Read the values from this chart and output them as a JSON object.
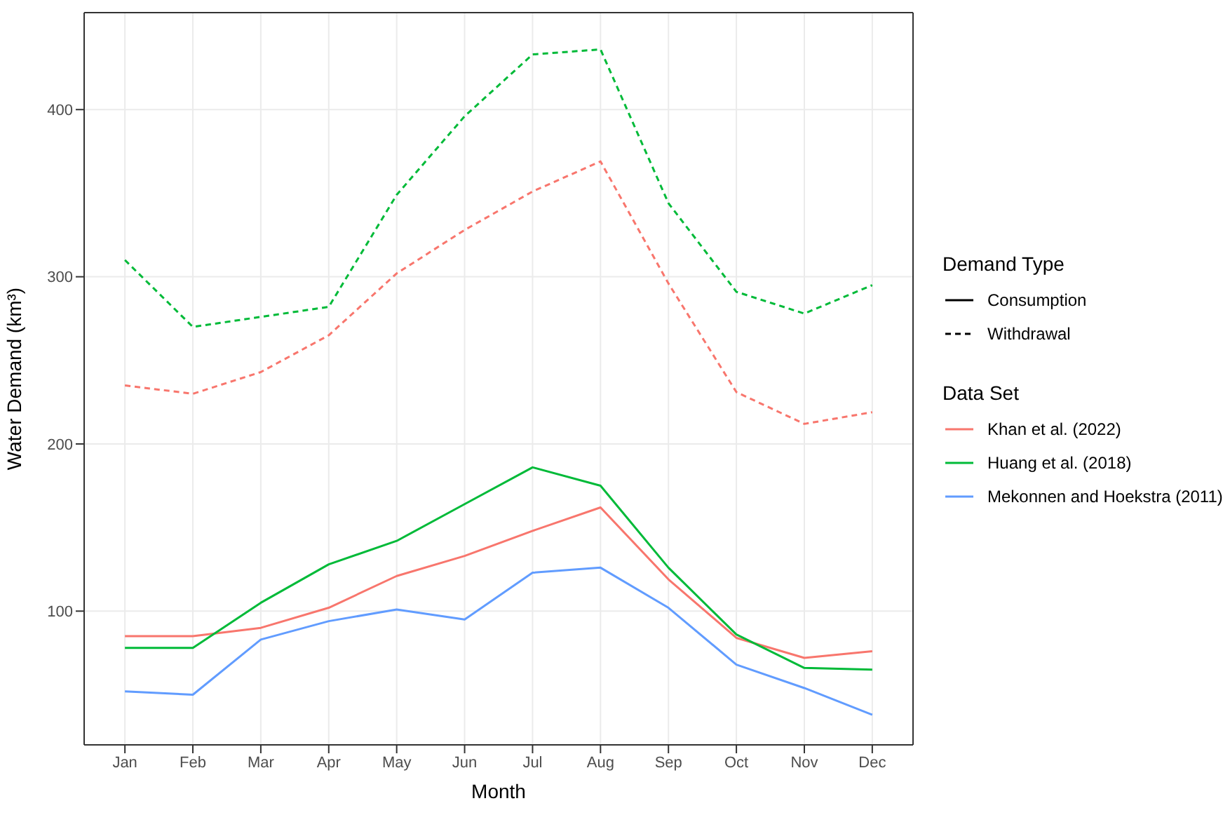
{
  "chart_data": {
    "type": "line",
    "xlabel": "Month",
    "ylabel": "Water Demand (km³)",
    "categories": [
      "Jan",
      "Feb",
      "Mar",
      "Apr",
      "May",
      "Jun",
      "Jul",
      "Aug",
      "Sep",
      "Oct",
      "Nov",
      "Dec"
    ],
    "ylim": [
      20,
      458
    ],
    "yticks": [
      100,
      200,
      300,
      400
    ],
    "grid": true,
    "legend": "right",
    "legend_title": "Data Set",
    "annotations": [
      "Demand Type",
      "Consumption",
      "Withdrawal"
    ],
    "series": [
      {
        "name": "Khan et al. (2022)",
        "color": "#f8766d",
        "line_style": "solid",
        "values": [
          85,
          85,
          90,
          102,
          121,
          133,
          148,
          162,
          119,
          84,
          72,
          76
        ]
      },
      {
        "name": "Huang et al. (2018)",
        "color": "#00ba38",
        "line_style": "solid",
        "values": [
          78,
          78,
          105,
          128,
          142,
          164,
          186,
          175,
          126,
          86,
          66,
          65
        ]
      },
      {
        "name": "Mekonnen and Hoekstra (2011)",
        "color": "#619cff",
        "line_style": "solid",
        "values": [
          52,
          50,
          83,
          94,
          101,
          95,
          123,
          126,
          102,
          68,
          54,
          38
        ]
      },
      {
        "color": "#f8766d",
        "line_style": "dashed",
        "values": [
          235,
          230,
          243,
          265,
          302,
          328,
          351,
          369,
          296,
          231,
          212,
          219
        ]
      },
      {
        "color": "#00ba38",
        "line_style": "dashed",
        "values": [
          310,
          270,
          276,
          282,
          349,
          396,
          433,
          436,
          344,
          291,
          278,
          295
        ]
      }
    ]
  }
}
